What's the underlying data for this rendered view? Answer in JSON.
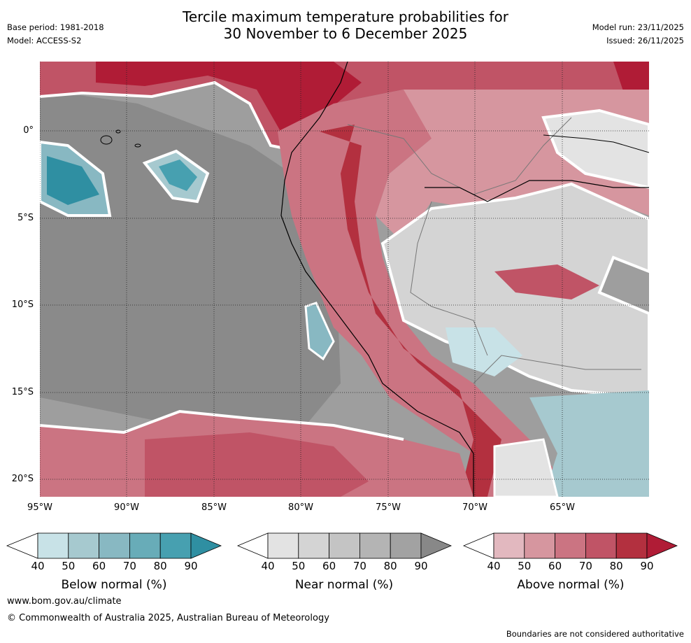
{
  "header": {
    "title_line1": "Tercile maximum temperature probabilities for",
    "title_line2": "30 November to 6 December 2025",
    "base_period": "Base period: 1981-2018",
    "model": "Model: ACCESS-S2",
    "model_run": "Model run: 23/11/2025",
    "issued": "Issued: 26/11/2025"
  },
  "map": {
    "lat_labels": [
      "0°",
      "5°S",
      "10°S",
      "15°S",
      "20°S"
    ],
    "lon_labels": [
      "95°W",
      "90°W",
      "85°W",
      "80°W",
      "75°W",
      "70°W",
      "65°W"
    ]
  },
  "legend": {
    "ticks": [
      "40",
      "50",
      "60",
      "70",
      "80",
      "90"
    ],
    "below": {
      "title": "Below normal (%)",
      "colors": [
        "#c8e2e7",
        "#a6c9cf",
        "#88b8c2",
        "#68acb8",
        "#47a0b0",
        "#2f8fa2"
      ]
    },
    "near": {
      "title": "Near normal (%)",
      "colors": [
        "#e3e3e3",
        "#d4d4d4",
        "#c4c4c4",
        "#b4b4b4",
        "#a2a2a2",
        "#888888"
      ]
    },
    "above": {
      "title": "Above normal (%)",
      "colors": [
        "#e2b8bf",
        "#d6969f",
        "#cb7482",
        "#c05466",
        "#b3303f",
        "#b01c36"
      ]
    }
  },
  "footer": {
    "website": "www.bom.gov.au/climate",
    "copyright": "© Commonwealth of Australia 2025, Australian Bureau of Meteorology",
    "disclaimer": "Boundaries are not considered authoritative"
  }
}
